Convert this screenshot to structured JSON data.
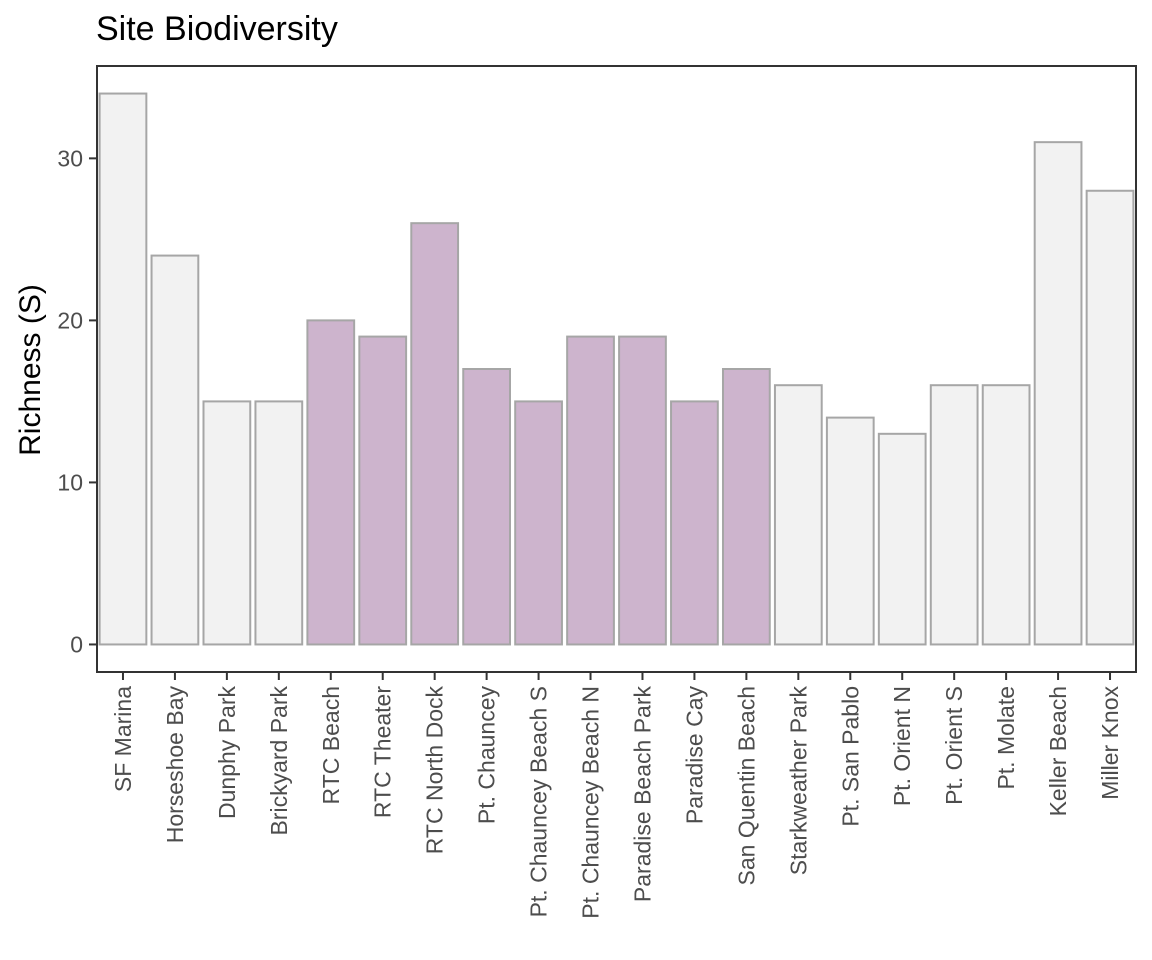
{
  "chart_data": {
    "type": "bar",
    "title": "Site Biodiversity",
    "xlabel": "",
    "ylabel": "Richness (S)",
    "ylim": [
      -1.7,
      35.7
    ],
    "yticks": [
      0,
      10,
      20,
      30
    ],
    "grid": false,
    "categories": [
      "SF Marina",
      "Horseshoe Bay",
      "Dunphy Park",
      "Brickyard Park",
      "RTC Beach",
      "RTC Theater",
      "RTC North Dock",
      "Pt. Chauncey",
      "Pt. Chauncey Beach S",
      "Pt. Chauncey Beach N",
      "Paradise Beach Park",
      "Paradise Cay",
      "San Quentin Beach",
      "Starkweather Park",
      "Pt. San Pablo",
      "Pt. Orient N",
      "Pt. Orient S",
      "Pt. Molate",
      "Keller Beach",
      "Miller Knox"
    ],
    "values": [
      34,
      24,
      15,
      15,
      20,
      19,
      26,
      17,
      15,
      19,
      19,
      15,
      17,
      16,
      14,
      13,
      16,
      16,
      31,
      28
    ],
    "highlighted": [
      false,
      false,
      false,
      false,
      true,
      true,
      true,
      true,
      true,
      true,
      true,
      true,
      true,
      false,
      false,
      false,
      false,
      false,
      false,
      false
    ],
    "colors": {
      "default_fill": "#f2f2f2",
      "highlight_fill": "#cdb4cd",
      "bar_stroke": "#a6a6a6",
      "panel_border": "#333333",
      "tick_text": "#4d4d4d",
      "title_text": "#000000"
    }
  }
}
